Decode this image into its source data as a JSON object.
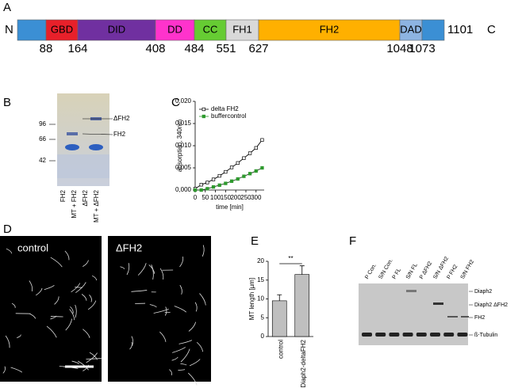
{
  "domain_map": {
    "label": "A",
    "n_term": "N",
    "c_term": "C",
    "length": "1101",
    "domains": [
      "GBD",
      "DID",
      "DD",
      "CC",
      "FH1",
      "FH2",
      "DAD"
    ],
    "boundaries": [
      88,
      164,
      408,
      484,
      551,
      627,
      1048,
      1073
    ]
  },
  "gel": {
    "label": "B",
    "markers": [
      96,
      66,
      42
    ],
    "bands": [
      "ΔFH2",
      "FH2"
    ],
    "lanes": [
      "FH2",
      "MT + FH2",
      "ΔFH2",
      "MT + ΔFH2"
    ]
  },
  "chart_data": [
    {
      "type": "line",
      "label": "C",
      "y_label": "absorption, 340nm",
      "x_label": "time [min]",
      "xlim": [
        0,
        340
      ],
      "xticks": [
        0,
        50,
        100,
        150,
        200,
        250,
        300
      ],
      "ylim": [
        0,
        0.02
      ],
      "yticks": [
        {
          "value": 0,
          "label": "0,000"
        },
        {
          "value": 0.005,
          "label": "0,005"
        },
        {
          "value": 0.01,
          "label": "0,010"
        },
        {
          "value": 0.015,
          "label": "0,015"
        },
        {
          "value": 0.02,
          "label": "0,020"
        }
      ],
      "x": [
        0,
        30,
        60,
        90,
        120,
        150,
        180,
        210,
        240,
        270,
        300,
        330
      ],
      "series": [
        {
          "name": "delta FH2",
          "color": "#000000",
          "values": [
            0.0003,
            0.0012,
            0.0017,
            0.0024,
            0.0032,
            0.0041,
            0.0051,
            0.0061,
            0.0072,
            0.0083,
            0.0095,
            0.0113
          ]
        },
        {
          "name": "buffercontrol",
          "color": "#2e9a2e",
          "values": [
            0.0,
            0.0,
            0.0003,
            0.0007,
            0.0011,
            0.0015,
            0.002,
            0.0025,
            0.0031,
            0.0037,
            0.0043,
            0.005
          ]
        }
      ]
    },
    {
      "type": "bar",
      "label": "E",
      "y_label": "MT length [µm]",
      "categories": [
        "control",
        "Diaph2-deltaFH2"
      ],
      "values": [
        9.5,
        16.5
      ],
      "errors": [
        1.6,
        2.3
      ],
      "color": "#bfbfbf",
      "annotation": "**",
      "ylim": [
        0,
        20
      ],
      "yticks": [
        0,
        5,
        10,
        15,
        20
      ]
    }
  ],
  "microscopy": {
    "label": "D",
    "conditions": [
      "control",
      "ΔFH2"
    ]
  },
  "blot": {
    "label": "F",
    "lanes": [
      "P Con.",
      "S/N Con.",
      "P FL",
      "S/N FL",
      "P ΔFH2",
      "S/N ΔFH2",
      "P FH2",
      "S/N FH2"
    ],
    "bands": [
      "Diaph2",
      "Diaph2 ΔFH2",
      "FH2",
      "ß-Tubulin"
    ]
  }
}
